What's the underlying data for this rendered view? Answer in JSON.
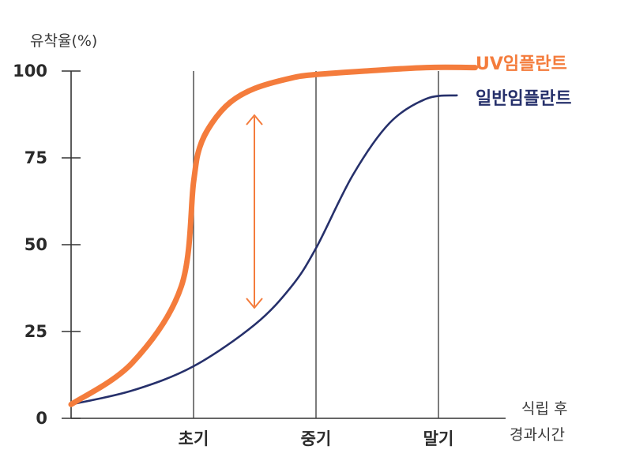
{
  "chart_data": {
    "type": "line",
    "ylabel": "유착율(%)",
    "xlabel_line1": "식립 후",
    "xlabel_line2": "경과시간",
    "yticks": [
      "0",
      "25",
      "50",
      "75",
      "100"
    ],
    "ylim": [
      0,
      100
    ],
    "categories": [
      "초기",
      "중기",
      "말기"
    ],
    "grid": "vertical lines at x categories",
    "series": [
      {
        "name": "UV임플란트",
        "color": "#f47c3c",
        "x": [
          0.0,
          0.5,
          0.9,
          1.0,
          1.05,
          1.15,
          1.3,
          1.5,
          1.8,
          2.0,
          2.4,
          2.9,
          3.3
        ],
        "y": [
          4,
          16,
          38,
          68,
          78,
          85,
          91,
          95,
          98,
          99,
          100,
          101,
          101
        ]
      },
      {
        "name": "일반임플란트",
        "color": "#26306b",
        "x": [
          0.0,
          0.5,
          1.0,
          1.5,
          1.8,
          2.0,
          2.3,
          2.6,
          2.9,
          3.15
        ],
        "y": [
          4,
          8,
          15,
          27,
          38,
          49,
          70,
          85,
          92,
          93
        ]
      }
    ],
    "annotation": "double-headed arrow between curves near early-to-mid stage"
  }
}
